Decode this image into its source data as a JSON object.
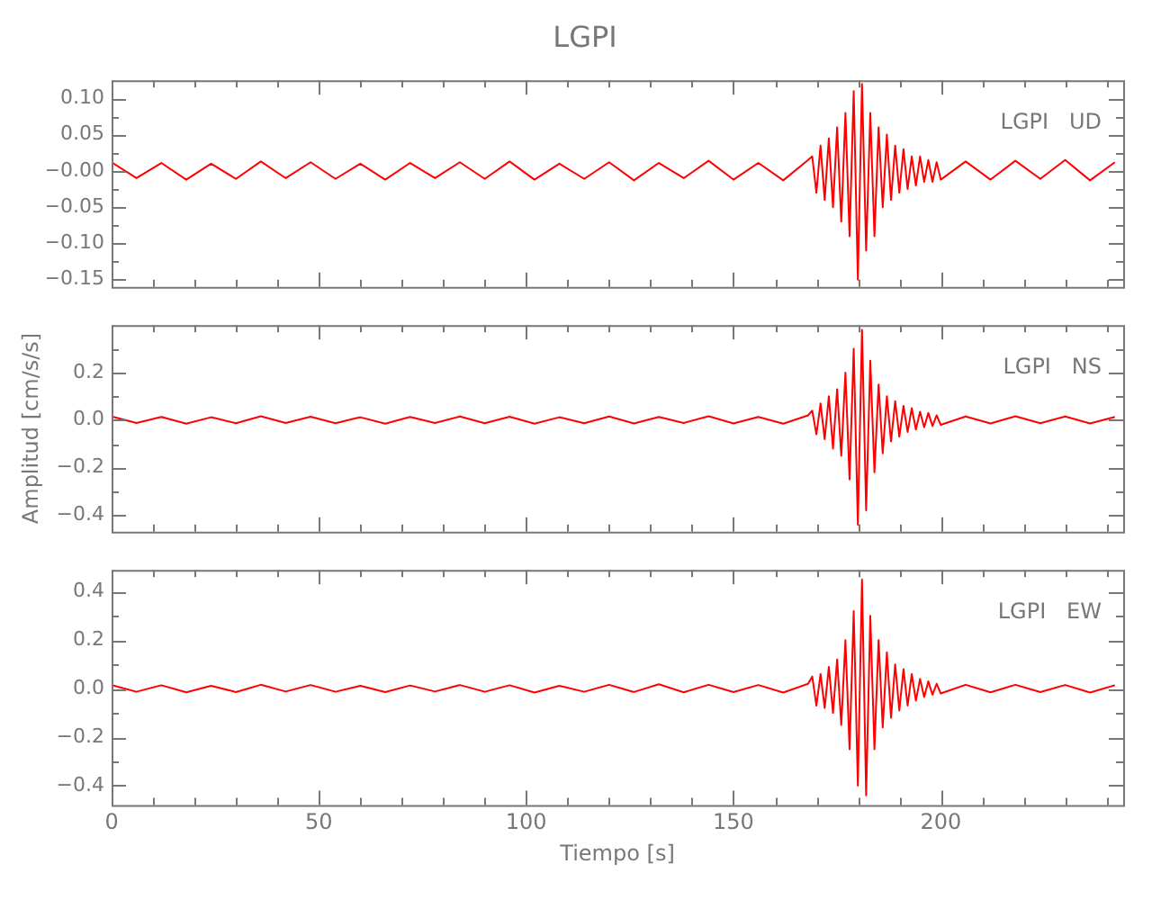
{
  "chart_data": [
    {
      "type": "line",
      "title": "LGPI",
      "annotations": [
        "LGPI   UD"
      ],
      "marker": "none",
      "tick_labels": "y",
      "x": [
        0,
        6,
        12,
        18,
        24,
        30,
        36,
        42,
        48,
        54,
        60,
        66,
        72,
        78,
        84,
        90,
        96,
        102,
        108,
        114,
        120,
        126,
        132,
        138,
        144,
        150,
        156,
        162,
        168,
        169,
        170,
        171,
        172,
        173,
        174,
        175,
        176,
        177,
        178,
        179,
        180,
        181,
        182,
        183,
        184,
        185,
        186,
        187,
        188,
        189,
        190,
        191,
        192,
        193,
        194,
        195,
        196,
        197,
        198,
        199,
        200,
        206,
        212,
        218,
        224,
        230,
        236,
        242
      ],
      "xlim": [
        0,
        244
      ],
      "xticks": [
        0,
        {
          "value": 10,
          "label": null
        },
        {
          "value": 20,
          "label": null
        },
        {
          "value": 30,
          "label": null
        },
        {
          "value": 40,
          "label": null
        },
        50,
        {
          "value": 60,
          "label": null
        },
        {
          "value": 70,
          "label": null
        },
        {
          "value": 80,
          "label": null
        },
        {
          "value": 90,
          "label": null
        },
        100,
        {
          "value": 110,
          "label": null
        },
        {
          "value": 120,
          "label": null
        },
        {
          "value": 130,
          "label": null
        },
        {
          "value": 140,
          "label": null
        },
        150,
        {
          "value": 160,
          "label": null
        },
        {
          "value": 170,
          "label": null
        },
        {
          "value": 180,
          "label": null
        },
        {
          "value": 190,
          "label": null
        },
        200,
        {
          "value": 210,
          "label": null
        },
        {
          "value": 220,
          "label": null
        },
        {
          "value": 230,
          "label": null
        },
        {
          "value": 240,
          "label": null
        }
      ],
      "ylim": [
        -0.16,
        0.125
      ],
      "yticks": [
        {
          "value": -0.15,
          "label": "−0.15"
        },
        {
          "value": -0.125,
          "label": null
        },
        {
          "value": -0.1,
          "label": "−0.10"
        },
        {
          "value": -0.075,
          "label": null
        },
        {
          "value": -0.05,
          "label": "−0.05"
        },
        {
          "value": -0.025,
          "label": null
        },
        {
          "value": 0,
          "label": "−0.00"
        },
        {
          "value": 0.025,
          "label": null
        },
        {
          "value": 0.05,
          "label": "0.05"
        },
        {
          "value": 0.075,
          "label": null
        },
        {
          "value": 0.1,
          "label": "0.10"
        }
      ],
      "series": [
        {
          "color": "#ff0000",
          "values": [
            0.012,
            -0.01,
            0.011,
            -0.012,
            0.01,
            -0.011,
            0.013,
            -0.01,
            0.012,
            -0.011,
            0.01,
            -0.012,
            0.011,
            -0.01,
            0.012,
            -0.011,
            0.013,
            -0.012,
            0.01,
            -0.011,
            0.012,
            -0.013,
            0.011,
            -0.01,
            0.014,
            -0.012,
            0.011,
            -0.013,
            0.015,
            0.02,
            -0.03,
            0.035,
            -0.04,
            0.045,
            -0.05,
            0.06,
            -0.07,
            0.08,
            -0.09,
            0.11,
            -0.15,
            0.12,
            -0.11,
            0.08,
            -0.09,
            0.06,
            -0.05,
            0.05,
            -0.04,
            0.035,
            -0.03,
            0.03,
            -0.025,
            0.02,
            -0.02,
            0.02,
            -0.015,
            0.015,
            -0.015,
            0.012,
            -0.012,
            0.013,
            -0.012,
            0.014,
            -0.011,
            0.015,
            -0.013,
            0.012
          ]
        }
      ]
    },
    {
      "type": "line",
      "ylabel": "Amplitud [cm/s/s]",
      "annotations": [
        "LGPI   NS"
      ],
      "marker": "none",
      "tick_labels": "y",
      "x": [
        0,
        6,
        12,
        18,
        24,
        30,
        36,
        42,
        48,
        54,
        60,
        66,
        72,
        78,
        84,
        90,
        96,
        102,
        108,
        114,
        120,
        126,
        132,
        138,
        144,
        150,
        156,
        162,
        168,
        169,
        170,
        171,
        172,
        173,
        174,
        175,
        176,
        177,
        178,
        179,
        180,
        181,
        182,
        183,
        184,
        185,
        186,
        187,
        188,
        189,
        190,
        191,
        192,
        193,
        194,
        195,
        196,
        197,
        198,
        199,
        200,
        206,
        212,
        218,
        224,
        230,
        236,
        242
      ],
      "xlim": [
        0,
        244
      ],
      "xticks": [
        0,
        {
          "value": 10,
          "label": null
        },
        {
          "value": 20,
          "label": null
        },
        {
          "value": 30,
          "label": null
        },
        {
          "value": 40,
          "label": null
        },
        50,
        {
          "value": 60,
          "label": null
        },
        {
          "value": 70,
          "label": null
        },
        {
          "value": 80,
          "label": null
        },
        {
          "value": 90,
          "label": null
        },
        100,
        {
          "value": 110,
          "label": null
        },
        {
          "value": 120,
          "label": null
        },
        {
          "value": 130,
          "label": null
        },
        {
          "value": 140,
          "label": null
        },
        150,
        {
          "value": 160,
          "label": null
        },
        {
          "value": 170,
          "label": null
        },
        {
          "value": 180,
          "label": null
        },
        {
          "value": 190,
          "label": null
        },
        200,
        {
          "value": 210,
          "label": null
        },
        {
          "value": 220,
          "label": null
        },
        {
          "value": 230,
          "label": null
        },
        {
          "value": 240,
          "label": null
        }
      ],
      "ylim": [
        -0.47,
        0.4
      ],
      "yticks": [
        {
          "value": -0.4,
          "label": "−0.4"
        },
        {
          "value": -0.3,
          "label": null
        },
        {
          "value": -0.2,
          "label": "−0.2"
        },
        {
          "value": -0.1,
          "label": null
        },
        {
          "value": 0,
          "label": "0.0"
        },
        {
          "value": 0.1,
          "label": null
        },
        {
          "value": 0.2,
          "label": "0.2"
        },
        {
          "value": 0.3,
          "label": null
        }
      ],
      "series": [
        {
          "color": "#ff0000",
          "values": [
            0.015,
            -0.012,
            0.013,
            -0.015,
            0.012,
            -0.013,
            0.016,
            -0.012,
            0.014,
            -0.013,
            0.012,
            -0.015,
            0.013,
            -0.012,
            0.015,
            -0.013,
            0.014,
            -0.015,
            0.012,
            -0.013,
            0.015,
            -0.014,
            0.013,
            -0.012,
            0.016,
            -0.014,
            0.013,
            -0.015,
            0.02,
            0.04,
            -0.06,
            0.07,
            -0.08,
            0.1,
            -0.12,
            0.13,
            -0.15,
            0.2,
            -0.25,
            0.3,
            -0.44,
            0.38,
            -0.38,
            0.25,
            -0.22,
            0.15,
            -0.14,
            0.1,
            -0.09,
            0.08,
            -0.07,
            0.06,
            -0.05,
            0.05,
            -0.04,
            0.035,
            -0.03,
            0.03,
            -0.025,
            0.02,
            -0.02,
            0.015,
            -0.014,
            0.016,
            -0.013,
            0.015,
            -0.014,
            0.013
          ]
        }
      ]
    },
    {
      "type": "line",
      "xlabel": "Tiempo [s]",
      "annotations": [
        "LGPI   EW"
      ],
      "marker": "none",
      "x": [
        0,
        6,
        12,
        18,
        24,
        30,
        36,
        42,
        48,
        54,
        60,
        66,
        72,
        78,
        84,
        90,
        96,
        102,
        108,
        114,
        120,
        126,
        132,
        138,
        144,
        150,
        156,
        162,
        168,
        169,
        170,
        171,
        172,
        173,
        174,
        175,
        176,
        177,
        178,
        179,
        180,
        181,
        182,
        183,
        184,
        185,
        186,
        187,
        188,
        189,
        190,
        191,
        192,
        193,
        194,
        195,
        196,
        197,
        198,
        199,
        200,
        206,
        212,
        218,
        224,
        230,
        236,
        242
      ],
      "xlim": [
        0,
        244
      ],
      "xticks": [
        0,
        {
          "value": 10,
          "label": null
        },
        {
          "value": 20,
          "label": null
        },
        {
          "value": 30,
          "label": null
        },
        {
          "value": 40,
          "label": null
        },
        50,
        {
          "value": 60,
          "label": null
        },
        {
          "value": 70,
          "label": null
        },
        {
          "value": 80,
          "label": null
        },
        {
          "value": 90,
          "label": null
        },
        100,
        {
          "value": 110,
          "label": null
        },
        {
          "value": 120,
          "label": null
        },
        {
          "value": 130,
          "label": null
        },
        {
          "value": 140,
          "label": null
        },
        150,
        {
          "value": 160,
          "label": null
        },
        {
          "value": 170,
          "label": null
        },
        {
          "value": 180,
          "label": null
        },
        {
          "value": 190,
          "label": null
        },
        200,
        {
          "value": 210,
          "label": null
        },
        {
          "value": 220,
          "label": null
        },
        {
          "value": 230,
          "label": null
        },
        {
          "value": 240,
          "label": null
        }
      ],
      "ylim": [
        -0.48,
        0.49
      ],
      "yticks": [
        {
          "value": -0.4,
          "label": "−0.4"
        },
        {
          "value": -0.3,
          "label": null
        },
        {
          "value": -0.2,
          "label": "−0.2"
        },
        {
          "value": -0.1,
          "label": null
        },
        {
          "value": 0,
          "label": "0.0"
        },
        {
          "value": 0.1,
          "label": null
        },
        {
          "value": 0.2,
          "label": "0.2"
        },
        {
          "value": 0.3,
          "label": null
        },
        {
          "value": 0.4,
          "label": "0.4"
        }
      ],
      "series": [
        {
          "color": "#ff0000",
          "values": [
            0.015,
            -0.013,
            0.014,
            -0.015,
            0.012,
            -0.014,
            0.016,
            -0.012,
            0.015,
            -0.013,
            0.012,
            -0.014,
            0.013,
            -0.012,
            0.015,
            -0.013,
            0.014,
            -0.016,
            0.012,
            -0.013,
            0.016,
            -0.014,
            0.018,
            -0.015,
            0.016,
            -0.014,
            0.015,
            -0.016,
            0.02,
            0.05,
            -0.07,
            0.06,
            -0.08,
            0.09,
            -0.1,
            0.12,
            -0.15,
            0.2,
            -0.25,
            0.32,
            -0.4,
            0.45,
            -0.44,
            0.3,
            -0.25,
            0.2,
            -0.16,
            0.15,
            -0.12,
            0.1,
            -0.09,
            0.08,
            -0.07,
            0.06,
            -0.05,
            0.04,
            -0.035,
            0.03,
            -0.025,
            0.02,
            -0.02,
            0.016,
            -0.015,
            0.016,
            -0.014,
            0.015,
            -0.016,
            0.014
          ]
        }
      ]
    }
  ]
}
